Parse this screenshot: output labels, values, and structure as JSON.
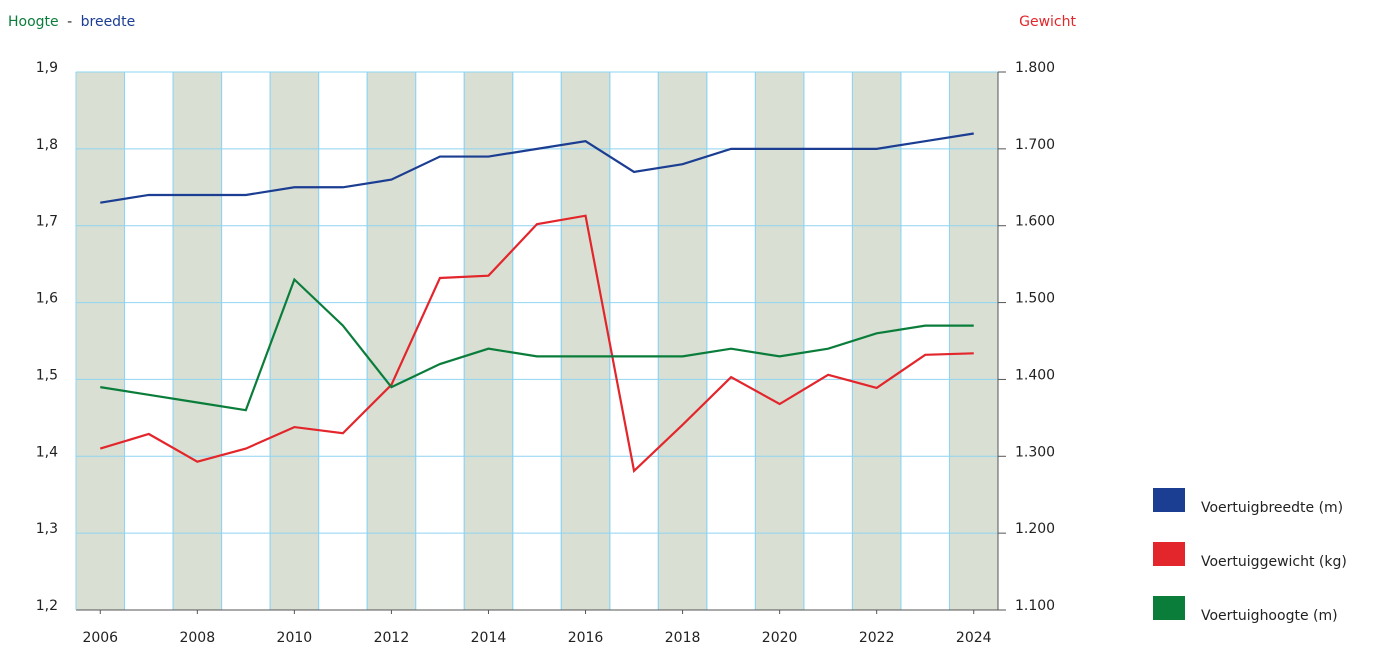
{
  "chart_data": {
    "type": "line",
    "y_label": [
      "Hoogte",
      "-",
      "breedte"
    ],
    "y2_label": "Gewicht",
    "x": [
      2006,
      2007,
      2008,
      2009,
      2010,
      2011,
      2012,
      2013,
      2014,
      2015,
      2016,
      2017,
      2018,
      2019,
      2020,
      2021,
      2022,
      2023,
      2024
    ],
    "xlim": [
      2005.5,
      2024.5
    ],
    "xticks": [
      2006,
      2008,
      2010,
      2012,
      2014,
      2016,
      2018,
      2020,
      2022,
      2024
    ],
    "ylim": [
      1.2,
      1.9
    ],
    "yticks": [
      {
        "value": 1.2,
        "label": "1,2"
      },
      {
        "value": 1.3,
        "label": "1,3"
      },
      {
        "value": 1.4,
        "label": "1,4"
      },
      {
        "value": 1.5,
        "label": "1,5"
      },
      {
        "value": 1.6,
        "label": "1,6"
      },
      {
        "value": 1.7,
        "label": "1,7"
      },
      {
        "value": 1.8,
        "label": "1,8"
      },
      {
        "value": 1.9,
        "label": "1,9"
      }
    ],
    "y2lim": [
      1100,
      1800
    ],
    "y2ticks": [
      {
        "value": 1100,
        "label": "1.100"
      },
      {
        "value": 1200,
        "label": "1.200"
      },
      {
        "value": 1300,
        "label": "1.300"
      },
      {
        "value": 1400,
        "label": "1.400"
      },
      {
        "value": 1500,
        "label": "1.500"
      },
      {
        "value": 1600,
        "label": "1.600"
      },
      {
        "value": 1700,
        "label": "1.700"
      },
      {
        "value": 1800,
        "label": "1.800"
      }
    ],
    "grid": true,
    "legend": "right",
    "series": [
      {
        "name": "Voertuigbreedte (m)",
        "color": "#1b3d92",
        "axis": "y",
        "values": [
          1.73,
          1.74,
          1.74,
          1.74,
          1.75,
          1.75,
          1.76,
          1.79,
          1.79,
          1.8,
          1.81,
          1.77,
          1.78,
          1.8,
          1.8,
          1.8,
          1.8,
          1.81,
          1.82
        ]
      },
      {
        "name": "Voertuiggewicht (kg)",
        "color": "#e3262c",
        "axis": "y2",
        "values": [
          1310,
          1329,
          1293,
          1310,
          1338,
          1330,
          1393,
          1532,
          1535,
          1602,
          1613,
          1281,
          1341,
          1403,
          1368,
          1406,
          1389,
          1432,
          1434
        ]
      },
      {
        "name": "Voertuighoogte (m)",
        "color": "#0b7d3b",
        "axis": "y",
        "values": [
          1.49,
          1.48,
          1.47,
          1.46,
          1.63,
          1.57,
          1.49,
          1.52,
          1.54,
          1.53,
          1.53,
          1.53,
          1.53,
          1.54,
          1.53,
          1.54,
          1.56,
          1.57,
          1.57
        ]
      }
    ]
  }
}
